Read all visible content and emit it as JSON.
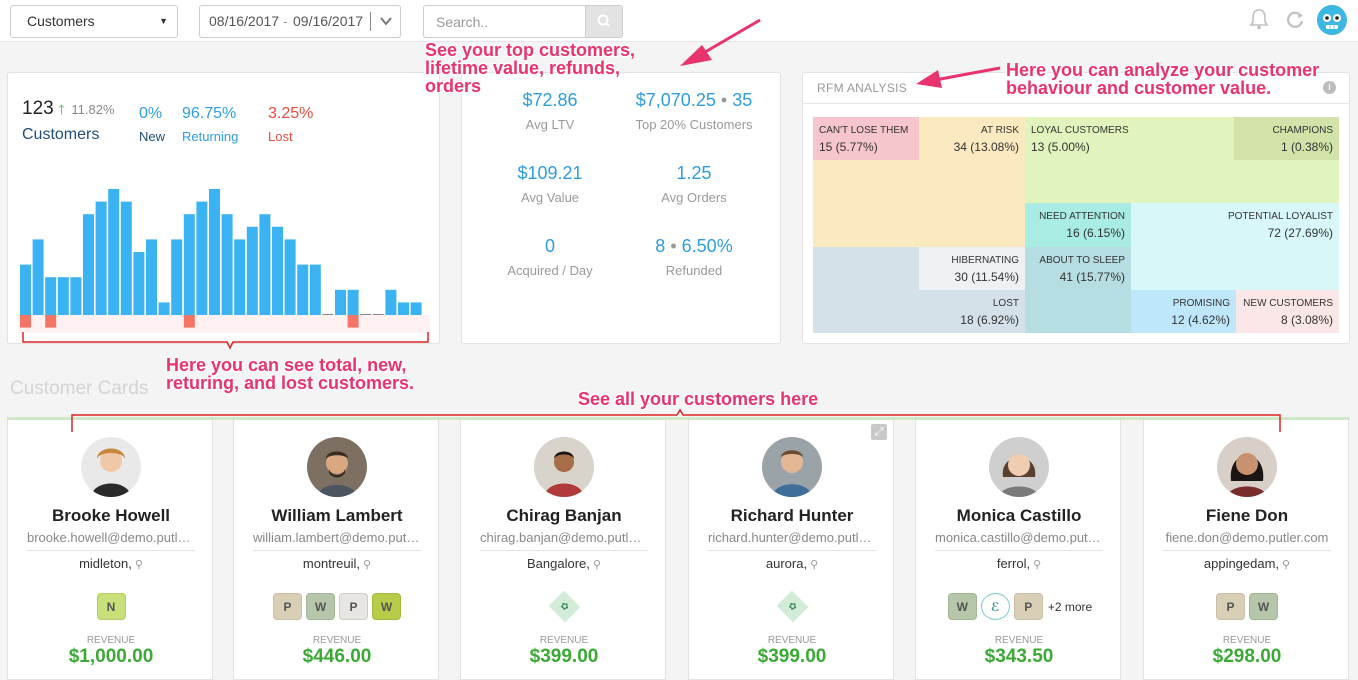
{
  "topbar": {
    "selector_value": "Customers",
    "date_from": "08/16/2017",
    "date_sep": "-",
    "date_to": "09/16/2017",
    "search_placeholder": "Search.."
  },
  "customers_panel": {
    "total": "123",
    "growth": "11.82%",
    "total_label": "Customers",
    "new_value": "0%",
    "new_label": "New",
    "returning_value": "96.75%",
    "returning_label": "Returning",
    "lost_value": "3.25%",
    "lost_label": "Lost"
  },
  "chart_data": {
    "type": "bar",
    "series": [
      {
        "name": "New/Returning",
        "values": [
          4,
          6,
          3,
          3,
          3,
          8,
          9,
          10,
          9,
          5,
          6,
          1,
          6,
          8,
          9,
          10,
          8,
          6,
          7,
          8,
          7,
          6,
          4,
          4,
          0,
          2,
          2,
          0,
          0,
          2,
          1,
          1
        ]
      },
      {
        "name": "Lost",
        "values": [
          1,
          0,
          1,
          0,
          0,
          0,
          0,
          0,
          0,
          0,
          0,
          0,
          0,
          1,
          0,
          0,
          0,
          0,
          0,
          0,
          0,
          0,
          0,
          0,
          0,
          0,
          1,
          0,
          0,
          0,
          0,
          0
        ]
      }
    ],
    "colors": {
      "positive": "#3bb3f2",
      "negative": "#f47466"
    }
  },
  "metrics": {
    "avg_ltv": "$72.86",
    "avg_ltv_label": "Avg LTV",
    "top20_value": "$7,070.25",
    "top20_count": "35",
    "top20_label": "Top 20% Customers",
    "avg_value": "$109.21",
    "avg_value_label": "Avg Value",
    "avg_orders": "1.25",
    "avg_orders_label": "Avg Orders",
    "acquired": "0",
    "acquired_label": "Acquired / Day",
    "refunded_count": "8",
    "refunded_pct": "6.50%",
    "refunded_label": "Refunded"
  },
  "rfm": {
    "title": "RFM ANALYSIS",
    "cells": {
      "cant_lose": {
        "label": "CAN'T LOSE THEM",
        "count": "15 (5.77%)"
      },
      "at_risk": {
        "label": "AT RISK",
        "count": "34 (13.08%)"
      },
      "loyal": {
        "label": "LOYAL CUSTOMERS",
        "count": "13 (5.00%)"
      },
      "champions": {
        "label": "CHAMPIONS",
        "count": "1 (0.38%)"
      },
      "need_attention": {
        "label": "NEED ATTENTION",
        "count": "16 (6.15%)"
      },
      "potential_loyalist": {
        "label": "POTENTIAL LOYALIST",
        "count": "72 (27.69%)"
      },
      "hibernating": {
        "label": "HIBERNATING",
        "count": "30 (11.54%)"
      },
      "about_to_sleep": {
        "label": "ABOUT TO SLEEP",
        "count": "41 (15.77%)"
      },
      "lost": {
        "label": "LOST",
        "count": "18 (6.92%)"
      },
      "promising": {
        "label": "PROMISING",
        "count": "12 (4.62%)"
      },
      "new_customers": {
        "label": "NEW CUSTOMERS",
        "count": "8 (3.08%)"
      }
    }
  },
  "section_title": "Customer Cards",
  "revenue_label": "REVENUE",
  "cards": [
    {
      "name": "Brooke Howell",
      "email": "brooke.howell@demo.putler.com",
      "location": "midleton,",
      "revenue": "$1,000.00"
    },
    {
      "name": "William Lambert",
      "email": "william.lambert@demo.putler.com",
      "location": "montreuil,",
      "revenue": "$446.00"
    },
    {
      "name": "Chirag Banjan",
      "email": "chirag.banjan@demo.putler.com",
      "location": "Bangalore,",
      "revenue": "$399.00"
    },
    {
      "name": "Richard Hunter",
      "email": "richard.hunter@demo.putler.com",
      "location": "aurora,",
      "revenue": "$399.00"
    },
    {
      "name": "Monica Castillo",
      "email": "monica.castillo@demo.putler.com",
      "location": "ferrol,",
      "revenue": "$343.50",
      "more": "+2 more"
    },
    {
      "name": "Fiene Don",
      "email": "fiene.don@demo.putler.com",
      "location": "appingedam,",
      "revenue": "$298.00"
    }
  ],
  "annotations": {
    "top_customers": "See your top customers, lifetime value, refunds, orders",
    "top_customers_l1": "See your top customers,",
    "top_customers_l2": "lifetime value, refunds,",
    "top_customers_l3": "orders",
    "rfm_l1": "Here you can analyze your customer",
    "rfm_l2": "behaviour and customer value.",
    "chart_l1": "Here you can see total, new,",
    "chart_l2": "returing, and lost customers.",
    "all_customers": "See all your customers here"
  }
}
